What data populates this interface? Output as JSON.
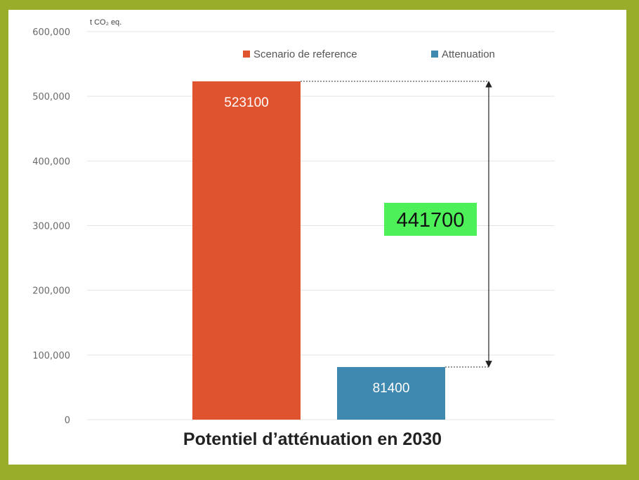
{
  "chart_data": {
    "type": "bar",
    "title": "Potentiel d’atténuation en 2030",
    "ylabel": "t CO₂ eq.",
    "ylim": [
      0,
      600000
    ],
    "ytick_labels": [
      "0",
      "100,000",
      "200,000",
      "300,000",
      "400,000",
      "500,000",
      "600,000"
    ],
    "yticks": [
      0,
      100000,
      200000,
      300000,
      400000,
      500000,
      600000
    ],
    "grid": true,
    "legend_position": "top-right",
    "series": [
      {
        "name": "Scenario de reference",
        "values": [
          523100
        ],
        "label": "523100",
        "color": "#e0532f"
      },
      {
        "name": "Attenuation",
        "values": [
          81400
        ],
        "label": "81400",
        "color": "#3f88b0"
      }
    ],
    "annotation": {
      "text": "441700",
      "from": 523100,
      "to": 81400,
      "color": "#4ef05a"
    }
  }
}
